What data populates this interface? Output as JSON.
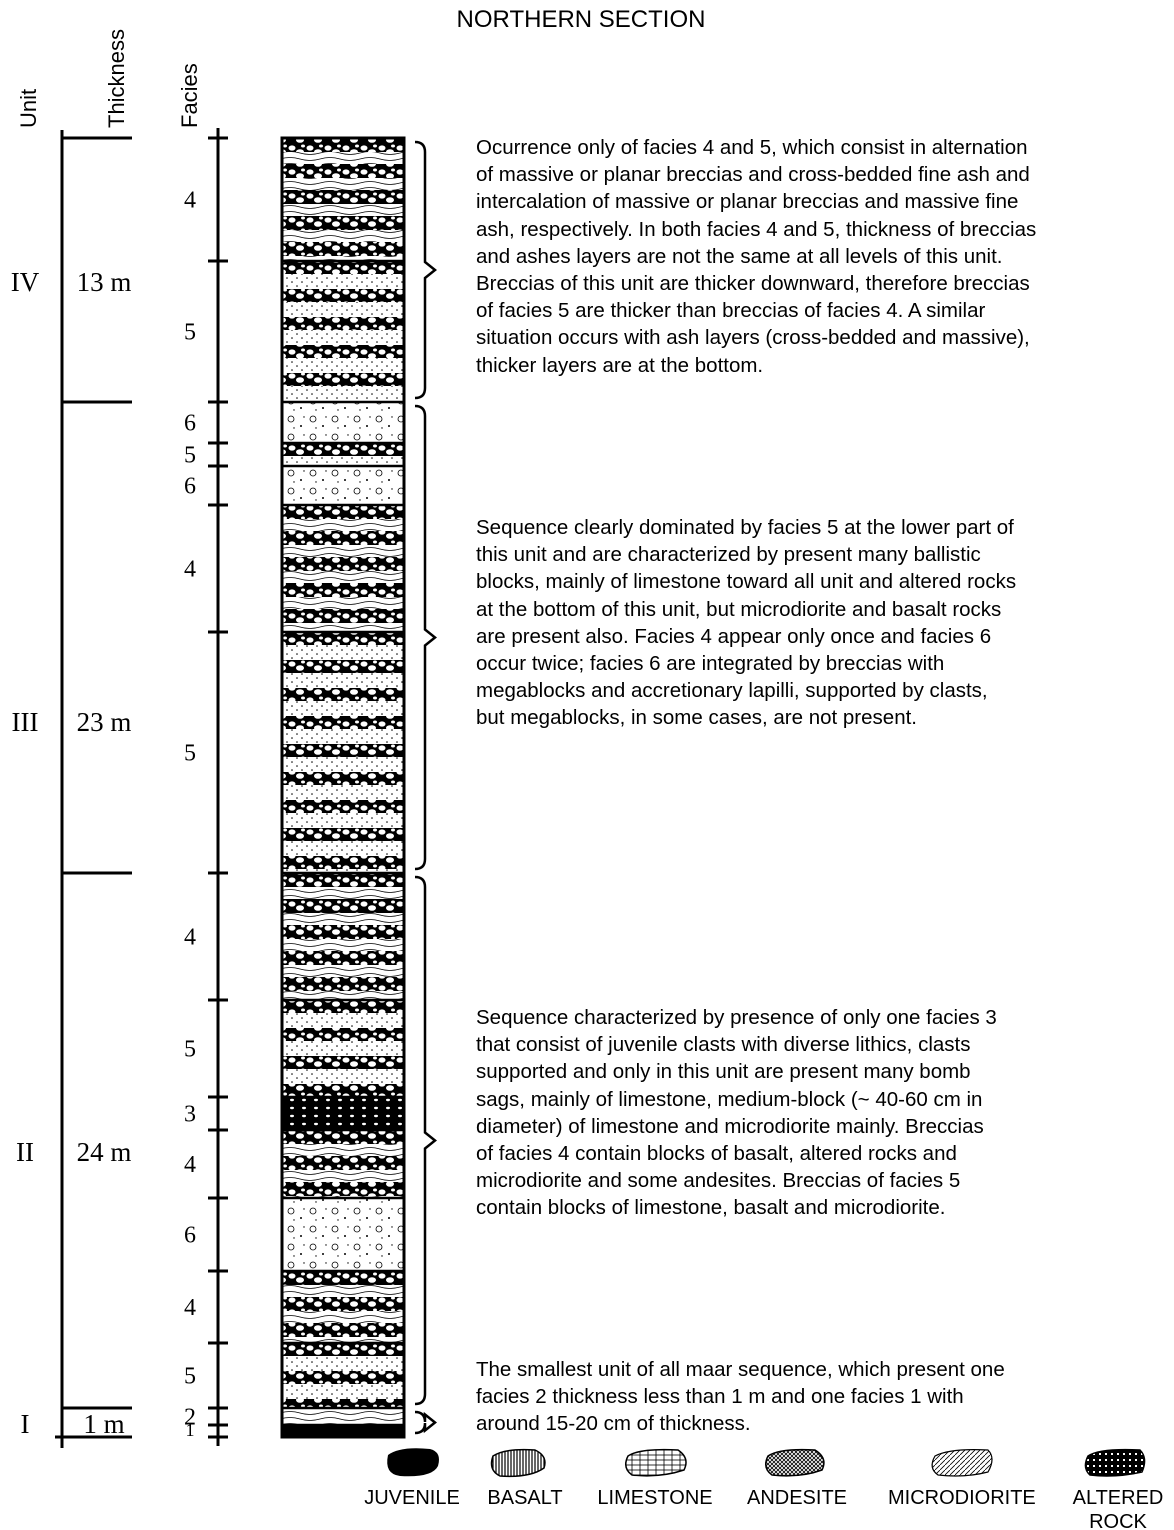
{
  "title": "NORTHERN SECTION",
  "headers": {
    "unit": "Unit",
    "thickness": "Thickness",
    "facies": "Facies"
  },
  "units": [
    {
      "unit": "IV",
      "thickness": "13 m",
      "facies": [
        "4",
        "5"
      ],
      "description": [
        "Ocurrence only of facies 4 and 5, which consist in alternation",
        "of massive or planar breccias and cross-bedded fine ash and",
        "intercalation of massive or planar breccias and massive fine",
        "ash, respectively. In both facies 4 and 5, thickness of breccias",
        "and ashes layers are not the same at all levels of this unit.",
        "Breccias of this unit are thicker downward, therefore breccias",
        "of facies 5 are thicker than breccias of facies 4. A similar",
        "situation occurs with ash layers (cross-bedded and massive),",
        "thicker layers are at the bottom."
      ]
    },
    {
      "unit": "III",
      "thickness": "23 m",
      "facies": [
        "6",
        "5",
        "6",
        "4",
        "5"
      ],
      "description": [
        "Sequence clearly dominated by facies 5 at the lower part of",
        "this unit and are characterized by present many ballistic",
        "blocks, mainly of limestone toward all unit and altered rocks",
        "at the bottom of this unit, but microdiorite and basalt rocks",
        "are present also. Facies 4 appear only once and facies 6",
        "occur twice; facies 6 are integrated by breccias with",
        "megablocks and accretionary lapilli, supported by clasts,",
        "but megablocks, in some cases, are not present."
      ]
    },
    {
      "unit": "II",
      "thickness": "24 m",
      "facies": [
        "4",
        "5",
        "3",
        "4",
        "6",
        "4",
        "5"
      ],
      "description": [
        "Sequence characterized by presence of only one facies 3",
        "that consist of juvenile clasts with diverse lithics, clasts",
        "supported and only in this unit are present many bomb",
        "sags, mainly of limestone, medium-block (~ 40-60 cm in",
        "diameter) of limestone and microdiorite mainly. Breccias",
        "of facies 4 contain blocks of basalt, altered rocks and",
        "microdiorite and some andesites. Breccias of facies 5",
        "contain blocks of limestone, basalt and microdiorite."
      ]
    },
    {
      "unit": "I",
      "thickness": "1 m",
      "facies": [
        "2",
        "1"
      ],
      "description": [
        "The smallest unit of all maar sequence, which present one",
        "facies 2 thickness less than 1 m and one facies 1 with",
        "around 15-20 cm of thickness."
      ]
    }
  ],
  "legend": [
    "JUVENILE",
    "BASALT",
    "LIMESTONE",
    "ANDESITE",
    "MICRODIORITE",
    "ALTERED ROCK"
  ]
}
